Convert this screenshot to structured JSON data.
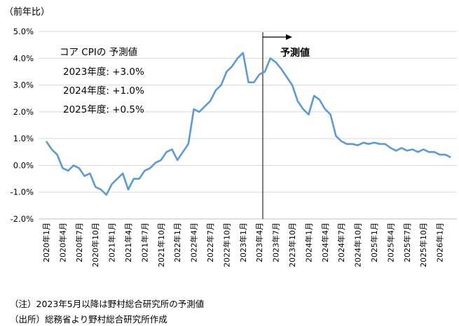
{
  "unit_label": "（前年比）",
  "notes": {
    "note1": "（注）2023年5月以降は野村総合研究所の予測値",
    "note2": "（出所）総務省より野村総合研究所作成"
  },
  "colors": {
    "line": "#5b9bd5",
    "grid": "#d9d9d9",
    "axis": "#000000"
  },
  "chart_data": {
    "type": "line",
    "title": "",
    "xlabel": "",
    "ylabel": "（前年比）",
    "ylim": [
      -2.0,
      5.0
    ],
    "y_ticks": [
      "-2.0%",
      "-1.0%",
      "0.0%",
      "1.0%",
      "2.0%",
      "3.0%",
      "4.0%",
      "5.0%"
    ],
    "x_tick_labels": [
      "2020年1月",
      "2020年4月",
      "2020年7月",
      "2020年10月",
      "2021年1月",
      "2021年4月",
      "2021年7月",
      "2021年10月",
      "2022年1月",
      "2022年4月",
      "2022年7月",
      "2022年10月",
      "2023年1月",
      "2023年4月",
      "2023年7月",
      "2023年10月",
      "2024年1月",
      "2024年4月",
      "2024年7月",
      "2024年10月",
      "2025年1月",
      "2025年4月",
      "2025年7月",
      "2025年10月",
      "2026年1月"
    ],
    "x_start": "2020年1月",
    "series": [
      {
        "values": [
          0.9,
          0.6,
          0.4,
          -0.1,
          -0.2,
          0.0,
          -0.1,
          -0.4,
          -0.3,
          -0.8,
          -0.9,
          -1.1,
          -0.7,
          -0.5,
          -0.3,
          -0.9,
          -0.5,
          -0.5,
          -0.2,
          -0.1,
          0.1,
          0.2,
          0.5,
          0.6,
          0.2,
          0.5,
          0.8,
          2.1,
          2.0,
          2.2,
          2.4,
          2.8,
          3.0,
          3.5,
          3.7,
          4.0,
          4.2,
          3.1,
          3.1,
          3.4,
          3.5,
          4.0,
          3.85,
          3.6,
          3.3,
          3.0,
          2.4,
          2.1,
          1.9,
          2.6,
          2.45,
          2.1,
          1.9,
          1.1,
          0.9,
          0.8,
          0.8,
          0.75,
          0.85,
          0.8,
          0.85,
          0.8,
          0.8,
          0.65,
          0.55,
          0.65,
          0.55,
          0.6,
          0.5,
          0.6,
          0.5,
          0.5,
          0.4,
          0.4,
          0.3
        ]
      }
    ],
    "forecast_marker": {
      "label": "予測値",
      "at": "2023年5月"
    },
    "annotations": {
      "heading": "コア CPIの 予測値",
      "lines": [
        "2023年度: +3.0%",
        "2024年度: +1.0%",
        "2025年度: +0.5%"
      ]
    }
  }
}
